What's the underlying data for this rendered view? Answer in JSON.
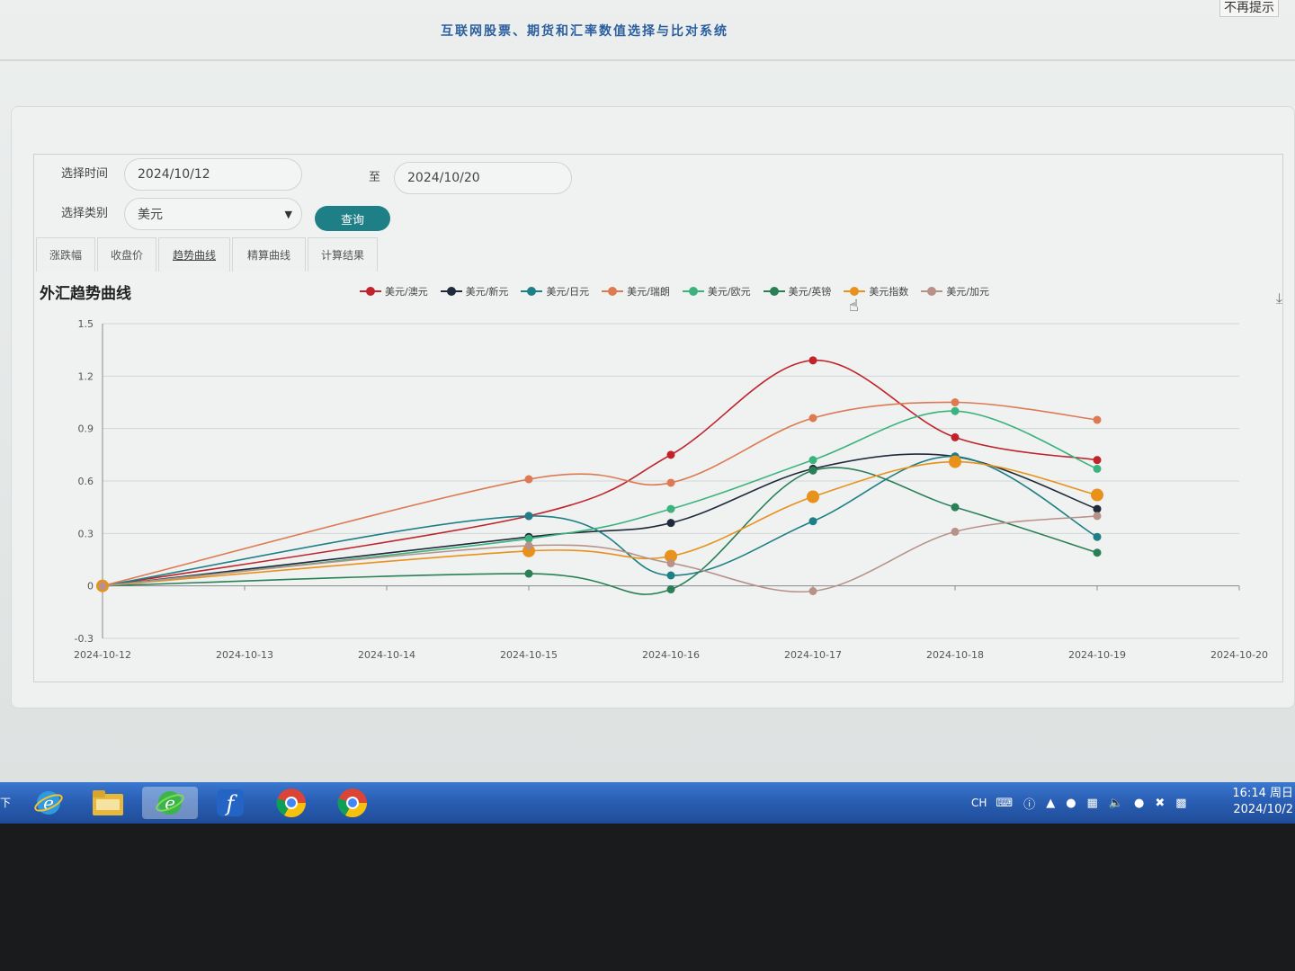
{
  "top_hint": "不再提示",
  "app_title": "互联网股票、期货和汇率数值选择与比对系统",
  "filters": {
    "time_label": "选择时间",
    "start_date": "2024/10/12",
    "to_label": "至",
    "end_date": "2024/10/20",
    "category_label": "选择类别",
    "category_value": "美元",
    "query_label": "查询"
  },
  "tabs": [
    {
      "label": "涨跌幅"
    },
    {
      "label": "收盘价"
    },
    {
      "label": "趋势曲线"
    },
    {
      "label": "精算曲线"
    },
    {
      "label": "计算结果"
    }
  ],
  "chart_title": "外汇趋势曲线",
  "download_icon": "download-icon",
  "chart_data": {
    "type": "line",
    "title": "外汇趋势曲线",
    "x": [
      "2024-10-12",
      "2024-10-13",
      "2024-10-14",
      "2024-10-15",
      "2024-10-16",
      "2024-10-17",
      "2024-10-18",
      "2024-10-19",
      "2024-10-20"
    ],
    "ylim": [
      -0.3,
      1.5
    ],
    "yticks": [
      "1.5",
      "1.2",
      "0.9",
      "0.6",
      "0.3",
      "0",
      "-0.3"
    ],
    "legend_position": "top",
    "smooth": true,
    "series": [
      {
        "name": "美元/澳元",
        "color": "#c0232c",
        "points": [
          [
            0,
            0
          ],
          [
            3,
            0.4
          ],
          [
            4,
            0.75
          ],
          [
            5,
            1.29
          ],
          [
            6,
            0.85
          ],
          [
            7,
            0.72
          ]
        ]
      },
      {
        "name": "美元/新元",
        "color": "#1f2a3b",
        "points": [
          [
            0,
            0
          ],
          [
            3,
            0.28
          ],
          [
            4,
            0.36
          ],
          [
            5,
            0.67
          ],
          [
            6,
            0.74
          ],
          [
            7,
            0.44
          ]
        ]
      },
      {
        "name": "美元/日元",
        "color": "#1e7f86",
        "points": [
          [
            0,
            0
          ],
          [
            3,
            0.4
          ],
          [
            4,
            0.06
          ],
          [
            5,
            0.37
          ],
          [
            6,
            0.74
          ],
          [
            7,
            0.28
          ]
        ]
      },
      {
        "name": "美元/瑞朗",
        "color": "#de7a52",
        "points": [
          [
            0,
            0
          ],
          [
            3,
            0.61
          ],
          [
            4,
            0.59
          ],
          [
            5,
            0.96
          ],
          [
            6,
            1.05
          ],
          [
            7,
            0.95
          ]
        ]
      },
      {
        "name": "美元/欧元",
        "color": "#3cb37e",
        "points": [
          [
            0,
            0
          ],
          [
            3,
            0.27
          ],
          [
            4,
            0.44
          ],
          [
            5,
            0.72
          ],
          [
            6,
            1.0
          ],
          [
            7,
            0.67
          ]
        ]
      },
      {
        "name": "美元/英镑",
        "color": "#2a7f57",
        "points": [
          [
            0,
            0
          ],
          [
            3,
            0.07
          ],
          [
            4,
            -0.02
          ],
          [
            5,
            0.66
          ],
          [
            6,
            0.45
          ],
          [
            7,
            0.19
          ]
        ]
      },
      {
        "name": "美元指数",
        "color": "#e8911b",
        "points": [
          [
            0,
            0
          ],
          [
            3,
            0.2
          ],
          [
            4,
            0.17
          ],
          [
            5,
            0.51
          ],
          [
            6,
            0.71
          ],
          [
            7,
            0.52
          ]
        ]
      },
      {
        "name": "美元/加元",
        "color": "#b89289",
        "points": [
          [
            0,
            0
          ],
          [
            3,
            0.23
          ],
          [
            4,
            0.13
          ],
          [
            5,
            -0.03
          ],
          [
            6,
            0.31
          ],
          [
            7,
            0.4
          ]
        ]
      }
    ]
  },
  "taskbar": {
    "start_fragment": "下",
    "icons": [
      "ie-icon",
      "folder-icon",
      "ie-active-icon",
      "flash-icon",
      "chrome-icon",
      "chrome-icon-2"
    ],
    "lang": "CH",
    "time": "16:14 周日",
    "date": "2024/10/2"
  }
}
